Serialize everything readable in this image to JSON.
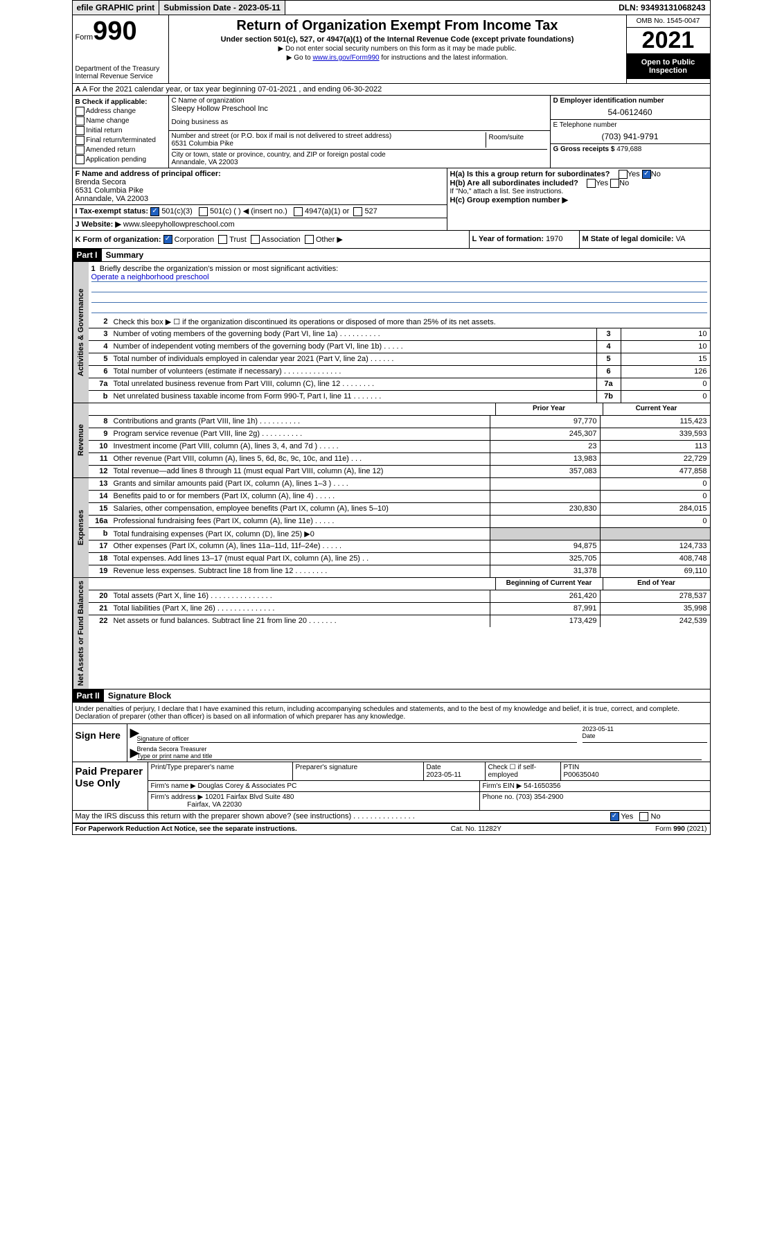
{
  "topbar": {
    "efile": "efile GRAPHIC print",
    "submit": "Submission Date - 2023-05-11",
    "dln": "DLN: 93493131068243"
  },
  "header": {
    "form_label": "Form",
    "form_number": "990",
    "title": "Return of Organization Exempt From Income Tax",
    "subtitle": "Under section 501(c), 527, or 4947(a)(1) of the Internal Revenue Code (except private foundations)",
    "note1": "▶ Do not enter social security numbers on this form as it may be made public.",
    "note2_pre": "▶ Go to ",
    "note2_link": "www.irs.gov/Form990",
    "note2_post": " for instructions and the latest information.",
    "dept": "Department of the Treasury Internal Revenue Service",
    "omb": "OMB No. 1545-0047",
    "year": "2021",
    "open_public": "Open to Public Inspection"
  },
  "blockA": "A For the 2021 calendar year, or tax year beginning 07-01-2021   , and ending 06-30-2022",
  "blockB": {
    "label": "B Check if applicable:",
    "opts": [
      "Address change",
      "Name change",
      "Initial return",
      "Final return/terminated",
      "Amended return",
      "Application pending"
    ]
  },
  "blockC": {
    "name_label": "C Name of organization",
    "name": "Sleepy Hollow Preschool Inc",
    "dba_label": "Doing business as",
    "addr_label": "Number and street (or P.O. box if mail is not delivered to street address)",
    "room_label": "Room/suite",
    "addr": "6531 Columbia Pike",
    "city_label": "City or town, state or province, country, and ZIP or foreign postal code",
    "city": "Annandale, VA  22003"
  },
  "blockD": {
    "label": "D Employer identification number",
    "val": "54-0612460"
  },
  "blockE": {
    "label": "E Telephone number",
    "val": "(703) 941-9791"
  },
  "blockG": {
    "label": "G Gross receipts $",
    "val": "479,688"
  },
  "blockF": {
    "label": "F Name and address of principal officer:",
    "name": "Brenda Secora",
    "addr1": "6531 Columbia Pike",
    "addr2": "Annandale, VA  22003"
  },
  "blockH": {
    "ha": "H(a)  Is this a group return for subordinates?",
    "hb": "H(b)  Are all subordinates included?",
    "hb_note": "If \"No,\" attach a list. See instructions.",
    "hc": "H(c)  Group exemption number ▶"
  },
  "blockI": {
    "label": "I   Tax-exempt status:",
    "opts": [
      "501(c)(3)",
      "501(c) (  ) ◀ (insert no.)",
      "4947(a)(1) or",
      "527"
    ]
  },
  "blockJ": {
    "label": "J   Website: ▶",
    "val": "www.sleepyhollowpreschool.com"
  },
  "blockK": {
    "label": "K Form of organization:",
    "opts": [
      "Corporation",
      "Trust",
      "Association",
      "Other ▶"
    ]
  },
  "blockL": {
    "label": "L Year of formation:",
    "val": "1970"
  },
  "blockM": {
    "label": "M State of legal domicile:",
    "val": "VA"
  },
  "part1": {
    "header": "Part I",
    "title": "Summary",
    "line1_label": "Briefly describe the organization's mission or most significant activities:",
    "line1_text": "Operate a neighborhood preschool",
    "line2": "Check this box ▶ ☐  if the organization discontinued its operations or disposed of more than 25% of its net assets.",
    "vtabs": {
      "gov": "Activities & Governance",
      "rev": "Revenue",
      "exp": "Expenses",
      "net": "Net Assets or Fund Balances"
    },
    "rows": [
      {
        "n": "3",
        "d": "Number of voting members of the governing body (Part VI, line 1a)   .   .   .   .   .   .   .   .   .   .",
        "bn": "3",
        "v": "10"
      },
      {
        "n": "4",
        "d": "Number of independent voting members of the governing body (Part VI, line 1b)   .   .   .   .   .",
        "bn": "4",
        "v": "10"
      },
      {
        "n": "5",
        "d": "Total number of individuals employed in calendar year 2021 (Part V, line 2a)   .   .   .   .   .   .",
        "bn": "5",
        "v": "15"
      },
      {
        "n": "6",
        "d": "Total number of volunteers (estimate if necessary)   .   .   .   .   .   .   .   .   .   .   .   .   .   .",
        "bn": "6",
        "v": "126"
      },
      {
        "n": "7a",
        "d": "Total unrelated business revenue from Part VIII, column (C), line 12   .   .   .   .   .   .   .   .",
        "bn": "7a",
        "v": "0"
      },
      {
        "n": "b",
        "d": "Net unrelated business taxable income from Form 990-T, Part I, line 11   .   .   .   .   .   .   .",
        "bn": "7b",
        "v": "0"
      }
    ],
    "colheads": {
      "prior": "Prior Year",
      "current": "Current Year"
    },
    "revrows": [
      {
        "n": "8",
        "d": "Contributions and grants (Part VIII, line 1h)   .   .   .   .   .   .   .   .   .   .",
        "p": "97,770",
        "c": "115,423"
      },
      {
        "n": "9",
        "d": "Program service revenue (Part VIII, line 2g)   .   .   .   .   .   .   .   .   .   .",
        "p": "245,307",
        "c": "339,593"
      },
      {
        "n": "10",
        "d": "Investment income (Part VIII, column (A), lines 3, 4, and 7d )   .   .   .   .   .",
        "p": "23",
        "c": "113"
      },
      {
        "n": "11",
        "d": "Other revenue (Part VIII, column (A), lines 5, 6d, 8c, 9c, 10c, and 11e)   .   .   .",
        "p": "13,983",
        "c": "22,729"
      },
      {
        "n": "12",
        "d": "Total revenue—add lines 8 through 11 (must equal Part VIII, column (A), line 12)",
        "p": "357,083",
        "c": "477,858"
      }
    ],
    "exprows": [
      {
        "n": "13",
        "d": "Grants and similar amounts paid (Part IX, column (A), lines 1–3 )   .   .   .   .",
        "p": "",
        "c": "0"
      },
      {
        "n": "14",
        "d": "Benefits paid to or for members (Part IX, column (A), line 4)   .   .   .   .   .",
        "p": "",
        "c": "0"
      },
      {
        "n": "15",
        "d": "Salaries, other compensation, employee benefits (Part IX, column (A), lines 5–10)",
        "p": "230,830",
        "c": "284,015"
      },
      {
        "n": "16a",
        "d": "Professional fundraising fees (Part IX, column (A), line 11e)   .   .   .   .   .",
        "p": "",
        "c": "0"
      },
      {
        "n": "b",
        "d": "Total fundraising expenses (Part IX, column (D), line 25) ▶0",
        "p": "shade",
        "c": "shade"
      },
      {
        "n": "17",
        "d": "Other expenses (Part IX, column (A), lines 11a–11d, 11f–24e)   .   .   .   .   .",
        "p": "94,875",
        "c": "124,733"
      },
      {
        "n": "18",
        "d": "Total expenses. Add lines 13–17 (must equal Part IX, column (A), line 25)   .   .",
        "p": "325,705",
        "c": "408,748"
      },
      {
        "n": "19",
        "d": "Revenue less expenses. Subtract line 18 from line 12   .   .   .   .   .   .   .   .",
        "p": "31,378",
        "c": "69,110"
      }
    ],
    "netcolheads": {
      "prior": "Beginning of Current Year",
      "current": "End of Year"
    },
    "netrows": [
      {
        "n": "20",
        "d": "Total assets (Part X, line 16)   .   .   .   .   .   .   .   .   .   .   .   .   .   .   .",
        "p": "261,420",
        "c": "278,537"
      },
      {
        "n": "21",
        "d": "Total liabilities (Part X, line 26)   .   .   .   .   .   .   .   .   .   .   .   .   .   .",
        "p": "87,991",
        "c": "35,998"
      },
      {
        "n": "22",
        "d": "Net assets or fund balances. Subtract line 21 from line 20   .   .   .   .   .   .   .",
        "p": "173,429",
        "c": "242,539"
      }
    ]
  },
  "part2": {
    "header": "Part II",
    "title": "Signature Block",
    "penalties": "Under penalties of perjury, I declare that I have examined this return, including accompanying schedules and statements, and to the best of my knowledge and belief, it is true, correct, and complete. Declaration of preparer (other than officer) is based on all information of which preparer has any knowledge.",
    "sign_here": "Sign Here",
    "sig_officer": "Signature of officer",
    "sig_date": "2023-05-11",
    "date_label": "Date",
    "officer_name": "Brenda Secora  Treasurer",
    "officer_label": "Type or print name and title",
    "paid_prep": "Paid Preparer Use Only",
    "prep_name_label": "Print/Type preparer's name",
    "prep_sig_label": "Preparer's signature",
    "prep_date_label": "Date",
    "prep_date": "2023-05-11",
    "check_label": "Check ☐ if self-employed",
    "ptin_label": "PTIN",
    "ptin": "P00635040",
    "firm_name_label": "Firm's name     ▶",
    "firm_name": "Douglas Corey & Associates PC",
    "firm_ein_label": "Firm's EIN ▶",
    "firm_ein": "54-1650356",
    "firm_addr_label": "Firm's address ▶",
    "firm_addr1": "10201 Fairfax Blvd Suite 480",
    "firm_addr2": "Fairfax, VA  22030",
    "phone_label": "Phone no.",
    "phone": "(703) 354-2900",
    "may_irs": "May the IRS discuss this return with the preparer shown above? (see instructions)   .   .   .   .   .   .   .   .   .   .   .   .   .   .   ."
  },
  "footer": {
    "left": "For Paperwork Reduction Act Notice, see the separate instructions.",
    "mid": "Cat. No. 11282Y",
    "right": "Form 990 (2021)"
  }
}
